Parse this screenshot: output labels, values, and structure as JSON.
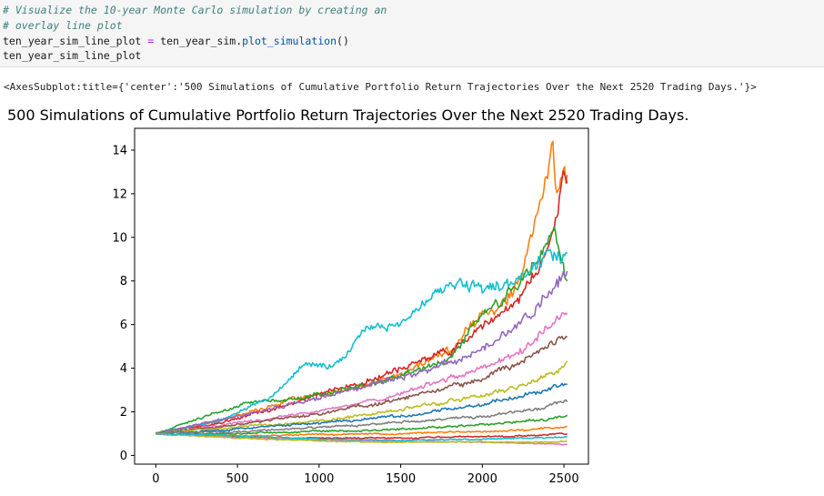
{
  "code": {
    "comment_line_1": "# Visualize the 10-year Monte Carlo simulation by creating an",
    "comment_line_2": "# overlay line plot",
    "assign_var": "ten_year_sim_line_plot",
    "assign_op": "=",
    "assign_obj": "ten_year_sim.",
    "assign_method": "plot_simulation",
    "assign_parens": "()",
    "echo_line": "ten_year_sim_line_plot"
  },
  "output": {
    "repr": "<AxesSubplot:title={'center':'500 Simulations of Cumulative Portfolio Return Trajectories Over the Next 2520 Trading Days.'}>"
  },
  "chart_data": {
    "type": "line",
    "title": "500 Simulations of Cumulative Portfolio Return Trajectories Over the Next 2520 Trading Days.",
    "xlabel": "",
    "ylabel": "",
    "xlim": [
      -130,
      2650
    ],
    "ylim": [
      -0.4,
      15.0
    ],
    "x_ticks": [
      0,
      500,
      1000,
      1500,
      2000,
      2500
    ],
    "y_ticks": [
      0,
      2,
      4,
      6,
      8,
      10,
      12,
      14
    ],
    "n_simulations": 500,
    "n_days": 2520,
    "start_value": 1.0,
    "legend": "none",
    "grid": false,
    "series": [
      {
        "color": "#ff7f0e",
        "x": [
          0,
          400,
          800,
          1200,
          1500,
          1800,
          2000,
          2150,
          2250,
          2300,
          2350,
          2400,
          2430,
          2460,
          2500,
          2520
        ],
        "y": [
          1.0,
          1.6,
          2.5,
          3.0,
          3.7,
          4.8,
          6.5,
          7.2,
          8.2,
          10.0,
          11.5,
          13.0,
          14.3,
          12.0,
          12.8,
          12.6
        ]
      },
      {
        "color": "#d62728",
        "x": [
          0,
          400,
          800,
          1200,
          1500,
          1800,
          2000,
          2200,
          2350,
          2450,
          2500,
          2520
        ],
        "y": [
          1.0,
          1.5,
          2.3,
          3.2,
          4.0,
          4.8,
          6.0,
          7.0,
          8.5,
          10.5,
          13.2,
          12.5
        ]
      },
      {
        "color": "#2ca02c",
        "x": [
          0,
          300,
          600,
          900,
          1200,
          1500,
          1800,
          2000,
          2200,
          2350,
          2430,
          2520
        ],
        "y": [
          1.0,
          1.8,
          2.5,
          2.6,
          3.1,
          3.6,
          4.5,
          6.5,
          7.8,
          9.0,
          10.4,
          8.0
        ]
      },
      {
        "color": "#17becf",
        "x": [
          0,
          400,
          700,
          900,
          1100,
          1300,
          1500,
          1700,
          1900,
          2100,
          2300,
          2400,
          2520
        ],
        "y": [
          1.0,
          1.6,
          2.6,
          4.1,
          4.1,
          5.8,
          6.0,
          7.5,
          7.9,
          7.5,
          8.5,
          9.3,
          9.0
        ]
      },
      {
        "color": "#9467bd",
        "x": [
          0,
          500,
          1000,
          1500,
          2000,
          2300,
          2520
        ],
        "y": [
          1.0,
          1.8,
          2.6,
          3.6,
          4.8,
          6.5,
          8.5
        ]
      },
      {
        "color": "#e377c2",
        "x": [
          0,
          500,
          1000,
          1500,
          2000,
          2300,
          2520
        ],
        "y": [
          1.0,
          1.5,
          2.0,
          2.8,
          4.0,
          5.2,
          6.5
        ]
      },
      {
        "color": "#8c564b",
        "x": [
          0,
          500,
          1000,
          1500,
          2000,
          2300,
          2520
        ],
        "y": [
          1.0,
          1.4,
          1.9,
          2.6,
          3.5,
          4.5,
          5.5
        ]
      },
      {
        "color": "#bcbd22",
        "x": [
          0,
          500,
          1000,
          1500,
          2000,
          2300,
          2520
        ],
        "y": [
          1.0,
          1.3,
          1.6,
          2.1,
          2.7,
          3.3,
          4.2
        ]
      },
      {
        "color": "#1f77b4",
        "x": [
          0,
          500,
          1000,
          1500,
          2000,
          2300,
          2520
        ],
        "y": [
          1.0,
          1.2,
          1.5,
          1.8,
          2.3,
          2.8,
          3.3
        ]
      },
      {
        "color": "#7f7f7f",
        "x": [
          0,
          500,
          1000,
          1500,
          2000,
          2300,
          2520
        ],
        "y": [
          1.0,
          1.1,
          1.3,
          1.5,
          1.8,
          2.1,
          2.5
        ]
      },
      {
        "color": "#2ca02c",
        "x": [
          0,
          500,
          1000,
          1500,
          2000,
          2300,
          2520
        ],
        "y": [
          1.0,
          1.0,
          1.1,
          1.2,
          1.4,
          1.6,
          1.8
        ]
      },
      {
        "color": "#ff7f0e",
        "x": [
          0,
          500,
          1000,
          1500,
          2000,
          2300,
          2520
        ],
        "y": [
          1.0,
          0.9,
          0.95,
          1.0,
          1.1,
          1.2,
          1.3
        ]
      },
      {
        "color": "#d62728",
        "x": [
          0,
          500,
          1000,
          1500,
          2000,
          2300,
          2520
        ],
        "y": [
          1.0,
          0.85,
          0.8,
          0.8,
          0.85,
          0.9,
          1.0
        ]
      },
      {
        "color": "#e377c2",
        "x": [
          0,
          500,
          1000,
          1500,
          2000,
          2300,
          2520
        ],
        "y": [
          1.0,
          0.8,
          0.7,
          0.65,
          0.6,
          0.55,
          0.5
        ]
      },
      {
        "color": "#bcbd22",
        "x": [
          0,
          500,
          1000,
          1500,
          2000,
          2300,
          2520
        ],
        "y": [
          1.0,
          0.8,
          0.65,
          0.6,
          0.62,
          0.6,
          0.65
        ]
      },
      {
        "color": "#17becf",
        "x": [
          0,
          500,
          1000,
          1500,
          2000,
          2300,
          2520
        ],
        "y": [
          1.0,
          0.9,
          0.75,
          0.7,
          0.75,
          0.8,
          0.85
        ]
      }
    ]
  }
}
